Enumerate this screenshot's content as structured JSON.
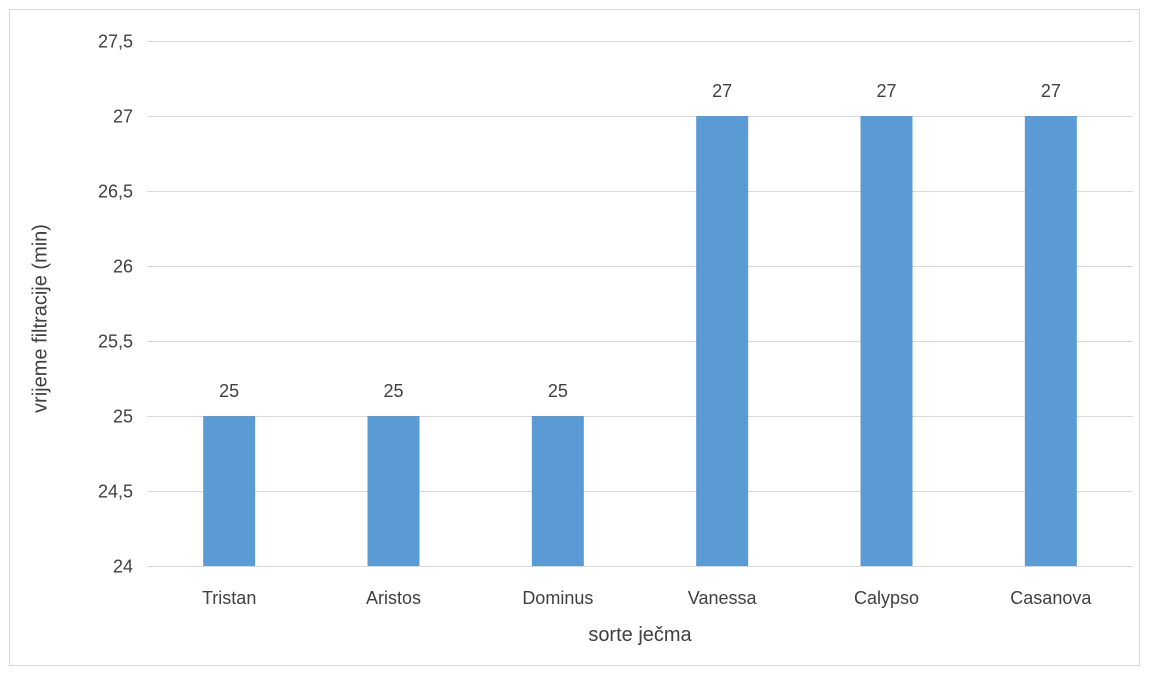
{
  "chart_data": {
    "type": "bar",
    "title": "",
    "xlabel": "sorte ječma",
    "ylabel": "vrijeme filtracije (min)",
    "categories": [
      "Tristan",
      "Aristos",
      "Dominus",
      "Vanessa",
      "Calypso",
      "Casanova"
    ],
    "values": [
      25,
      25,
      25,
      27,
      27,
      27
    ],
    "data_labels": [
      "25",
      "25",
      "25",
      "27",
      "27",
      "27"
    ],
    "ylim": [
      24,
      27.5
    ],
    "yticks": [
      24,
      24.5,
      25,
      25.5,
      26,
      26.5,
      27,
      27.5
    ],
    "ytick_labels": [
      "24",
      "24,5",
      "25",
      "25,5",
      "26",
      "26,5",
      "27",
      "27,5"
    ],
    "grid": true,
    "legend": "none",
    "bar_color": "#5b9bd5",
    "grid_color": "#d9d9d9",
    "text_color": "#404040"
  }
}
